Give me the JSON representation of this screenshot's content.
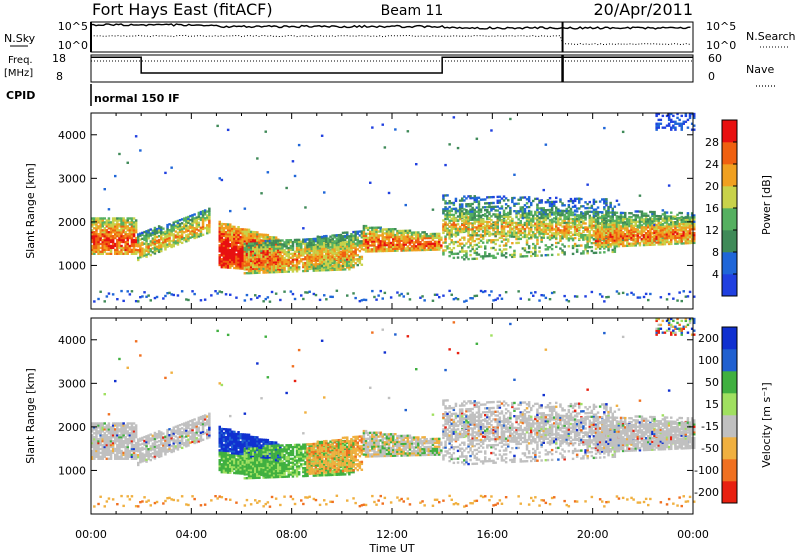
{
  "header": {
    "station": "Fort Hays East (fitACF)",
    "beam": "Beam 11",
    "date": "20/Apr/2011"
  },
  "nsky_panel": {
    "left_label": "N.Sky",
    "right_label": "N.Search",
    "ticks": [
      "10^5",
      "10^0"
    ]
  },
  "freq_panel": {
    "left_label_line1": "Freq.",
    "left_label_line2": "[MHz]",
    "left_ticks": [
      "18",
      "8"
    ],
    "right_ticks": [
      "60",
      "0"
    ],
    "right_label": "Nave"
  },
  "cpid_panel": {
    "label": "CPID",
    "program": "normal 150 IF"
  },
  "colors": {
    "power": [
      "#2040e0",
      "#1f66d8",
      "#3f8a58",
      "#55b060",
      "#c8d24a",
      "#f0a020",
      "#f06010",
      "#e81010"
    ],
    "velocity": [
      "#1030d0",
      "#2060d0",
      "#40b040",
      "#a0e060",
      "#c0c0c0",
      "#f0b040",
      "#f07020",
      "#e82010"
    ],
    "grey": "#c0c0c0"
  },
  "chart_data": [
    {
      "type": "heatmap",
      "name": "power",
      "ylabel": "Slant Range [km]",
      "ylim": [
        0,
        4500
      ],
      "y_ticks": [
        "1000",
        "2000",
        "3000",
        "4000"
      ],
      "x_ticks": [
        "00:00",
        "04:00",
        "08:00",
        "12:00",
        "16:00",
        "20:00",
        "00:00"
      ],
      "xlim_hours": [
        0,
        24
      ],
      "colorbar_label": "Power [dB]",
      "colorbar_ticks": [
        "4",
        "8",
        "12",
        "16",
        "20",
        "24",
        "28"
      ],
      "colorbar_range": [
        0,
        32
      ]
    },
    {
      "type": "heatmap",
      "name": "velocity",
      "ylabel": "Slant Range [km]",
      "ylim": [
        0,
        4500
      ],
      "y_ticks": [
        "1000",
        "2000",
        "3000",
        "4000"
      ],
      "x_ticks": [
        "00:00",
        "04:00",
        "08:00",
        "12:00",
        "16:00",
        "20:00",
        "00:00"
      ],
      "xlim_hours": [
        0,
        24
      ],
      "xlabel": "Time UT",
      "colorbar_label": "Velocity [m s⁻¹]",
      "colorbar_ticks": [
        "200",
        "100",
        "50",
        "15",
        "-15",
        "-50",
        "-100",
        "-200"
      ]
    }
  ]
}
